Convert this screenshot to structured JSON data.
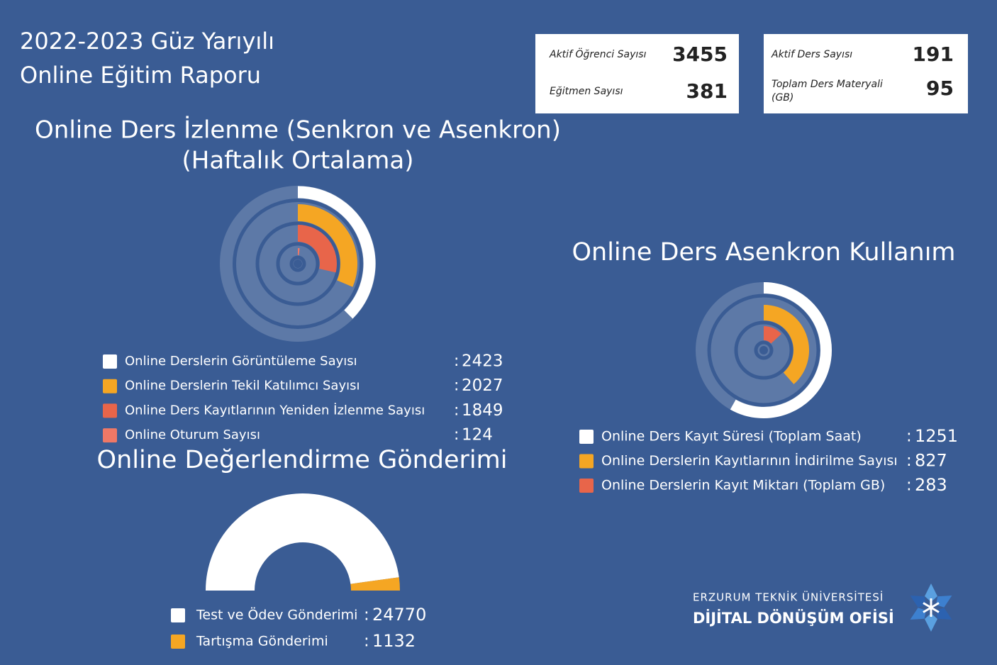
{
  "header": {
    "line1": "2022-2023 Güz Yarıyılı",
    "line2": "Online Eğitim Raporu"
  },
  "stats": [
    {
      "label": "Aktif Öğrenci Sayısı",
      "value": "3455"
    },
    {
      "label": "Eğitmen Sayısı",
      "value": "381"
    },
    {
      "label": "Aktif Ders Sayısı",
      "value": "191"
    },
    {
      "label": "Toplam Ders Materyali (GB)",
      "value": "95"
    }
  ],
  "chart_data": [
    {
      "type": "radial_bar",
      "title": "Online Ders İzlenme (Senkron ve Asenkron)",
      "subtitle": "(Haftalık Ortalama)",
      "categories": [
        "Online Derslerin Görüntüleme Sayısı",
        "Online Derslerin Tekil Katılımcı Sayısı",
        "Online Ders Kayıtlarının Yeniden İzlenme Sayısı",
        "Online Oturum Sayısı"
      ],
      "values": [
        2423,
        2027,
        1849,
        124
      ],
      "colors": [
        "#ffffff",
        "#f5a623",
        "#e8654a",
        "#ef7866"
      ],
      "ylim": [
        0,
        6460
      ]
    },
    {
      "type": "radial_bar",
      "title": "Online Ders Asenkron Kullanım",
      "categories": [
        "Online Ders Kayıt Süresi (Toplam Saat)",
        "Online Derslerin Kayıtlarının İndirilme Sayısı",
        "Online Derslerin Kayıt Miktarı (Toplam GB)"
      ],
      "values": [
        1251,
        827,
        283
      ],
      "colors": [
        "#ffffff",
        "#f5a623",
        "#e8654a"
      ],
      "ylim": [
        0,
        2150
      ]
    },
    {
      "type": "half_doughnut",
      "title": "Online Değerlendirme Gönderimi",
      "categories": [
        "Test ve Ödev Gönderimi",
        "Tartışma Gönderimi"
      ],
      "values": [
        24770,
        1132
      ],
      "colors": [
        "#ffffff",
        "#f5a623"
      ]
    }
  ],
  "logo": {
    "line1": "ERZURUM TEKNİK ÜNİVERSİTESİ",
    "line2": "DİJİTAL DÖNÜŞÜM OFİSİ"
  }
}
